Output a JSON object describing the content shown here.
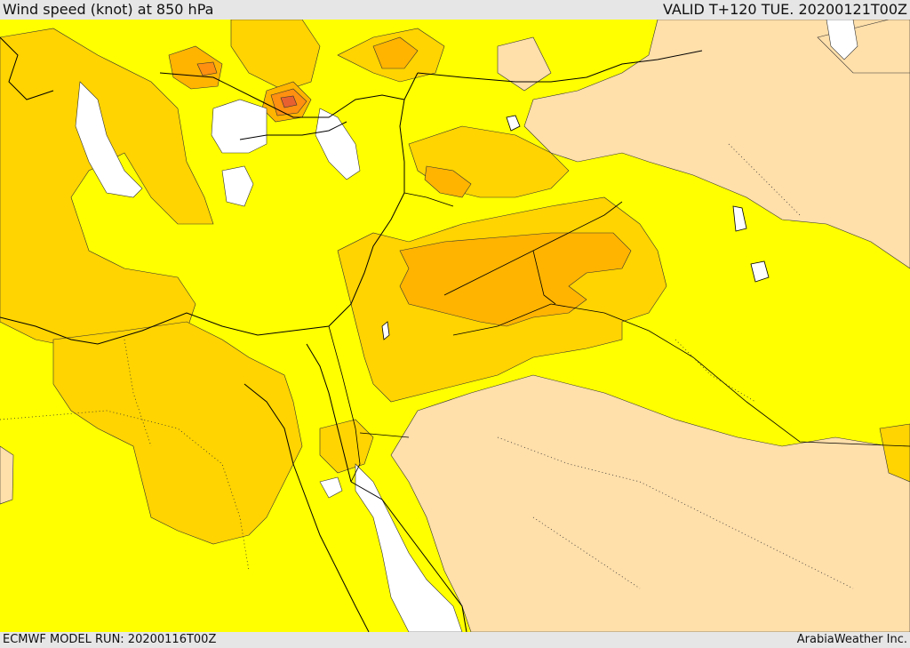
{
  "header": {
    "title": "Wind speed (knot) at 850 hPa",
    "valid": "VALID T+120 TUE. 20200121T00Z"
  },
  "footer": {
    "model_run": "ECMWF MODEL RUN: 20200116T00Z",
    "credit": "ArabiaWeather Inc."
  },
  "colors": {
    "level_0_10": "#ffdfaa",
    "level_10_20": "#ffff00",
    "level_20_30": "#ffd400",
    "level_30_40": "#ffb400",
    "level_40_50": "#ff9010",
    "level_50_60": "#e86030",
    "sea_calm": "#ffffff",
    "coastline": "#000000",
    "border": "#000000"
  }
}
